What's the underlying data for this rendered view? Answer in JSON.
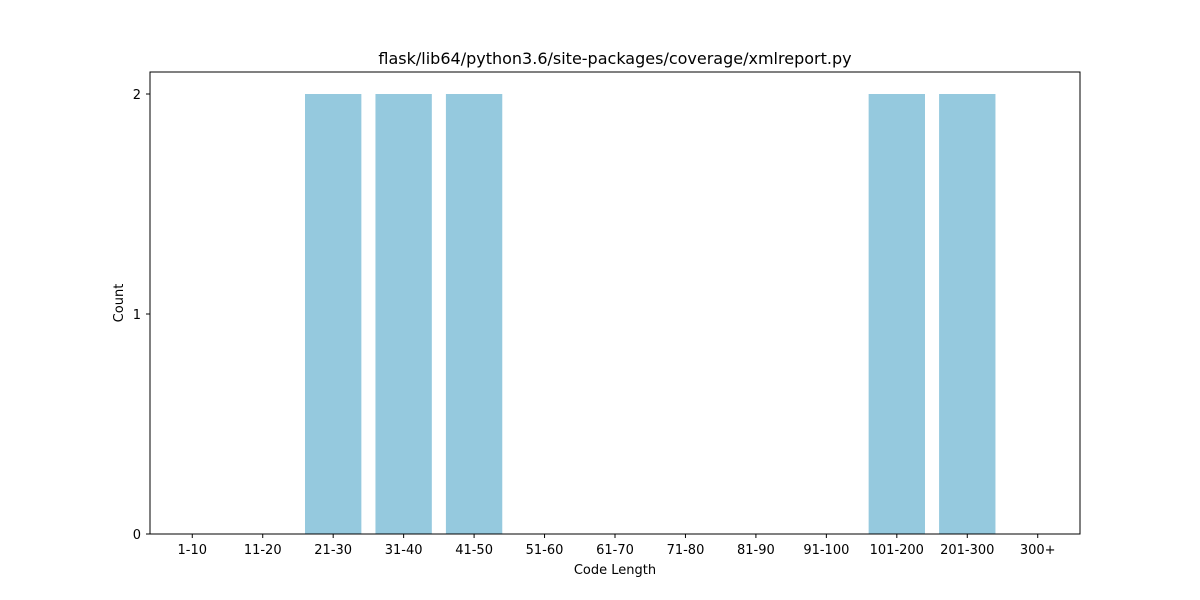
{
  "chart_data": {
    "type": "bar",
    "title": "flask/lib64/python3.6/site-packages/coverage/xmlreport.py",
    "xlabel": "Code Length",
    "ylabel": "Count",
    "categories": [
      "1-10",
      "11-20",
      "21-30",
      "31-40",
      "41-50",
      "51-60",
      "61-70",
      "71-80",
      "81-90",
      "91-100",
      "101-200",
      "201-300",
      "300+"
    ],
    "values": [
      0,
      0,
      2,
      2,
      2,
      0,
      0,
      0,
      0,
      0,
      2,
      2,
      0
    ],
    "ylim": [
      0,
      2.1
    ],
    "yticks": [
      0,
      1,
      2
    ],
    "bar_color": "#95c9de",
    "grid": false,
    "legend": "none"
  }
}
